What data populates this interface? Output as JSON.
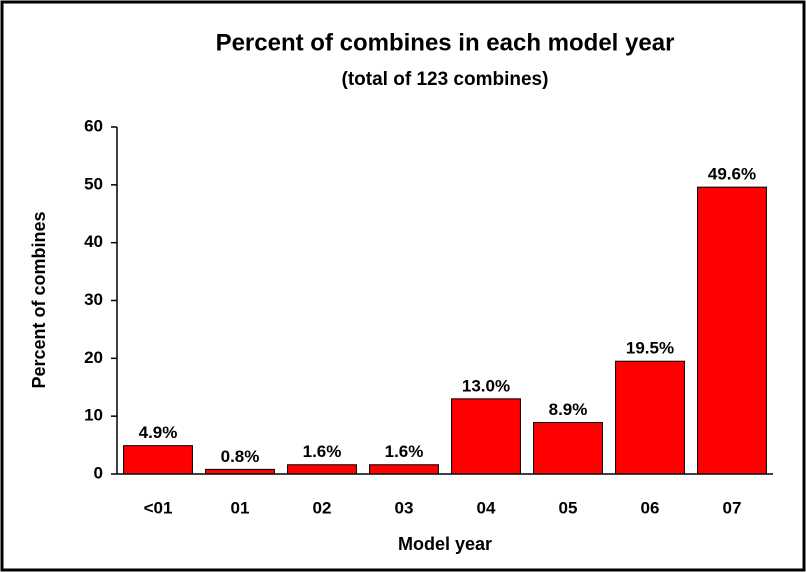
{
  "chart_data": {
    "type": "bar",
    "title": "Percent of combines in each model year",
    "subtitle": "(total of 123 combines)",
    "x_label": "Model year",
    "y_label": "Percent of combines",
    "categories": [
      "<01",
      "01",
      "02",
      "03",
      "04",
      "05",
      "06",
      "07"
    ],
    "values": [
      4.9,
      0.8,
      1.6,
      1.6,
      13.0,
      8.9,
      19.5,
      49.6
    ],
    "value_labels": [
      "4.9%",
      "0.8%",
      "1.6%",
      "1.6%",
      "13.0%",
      "8.9%",
      "19.5%",
      "49.6%"
    ],
    "color": "#ff0000",
    "ylim": [
      0,
      60
    ],
    "yticks": [
      0,
      10,
      20,
      30,
      40,
      50,
      60
    ],
    "grid": false
  }
}
